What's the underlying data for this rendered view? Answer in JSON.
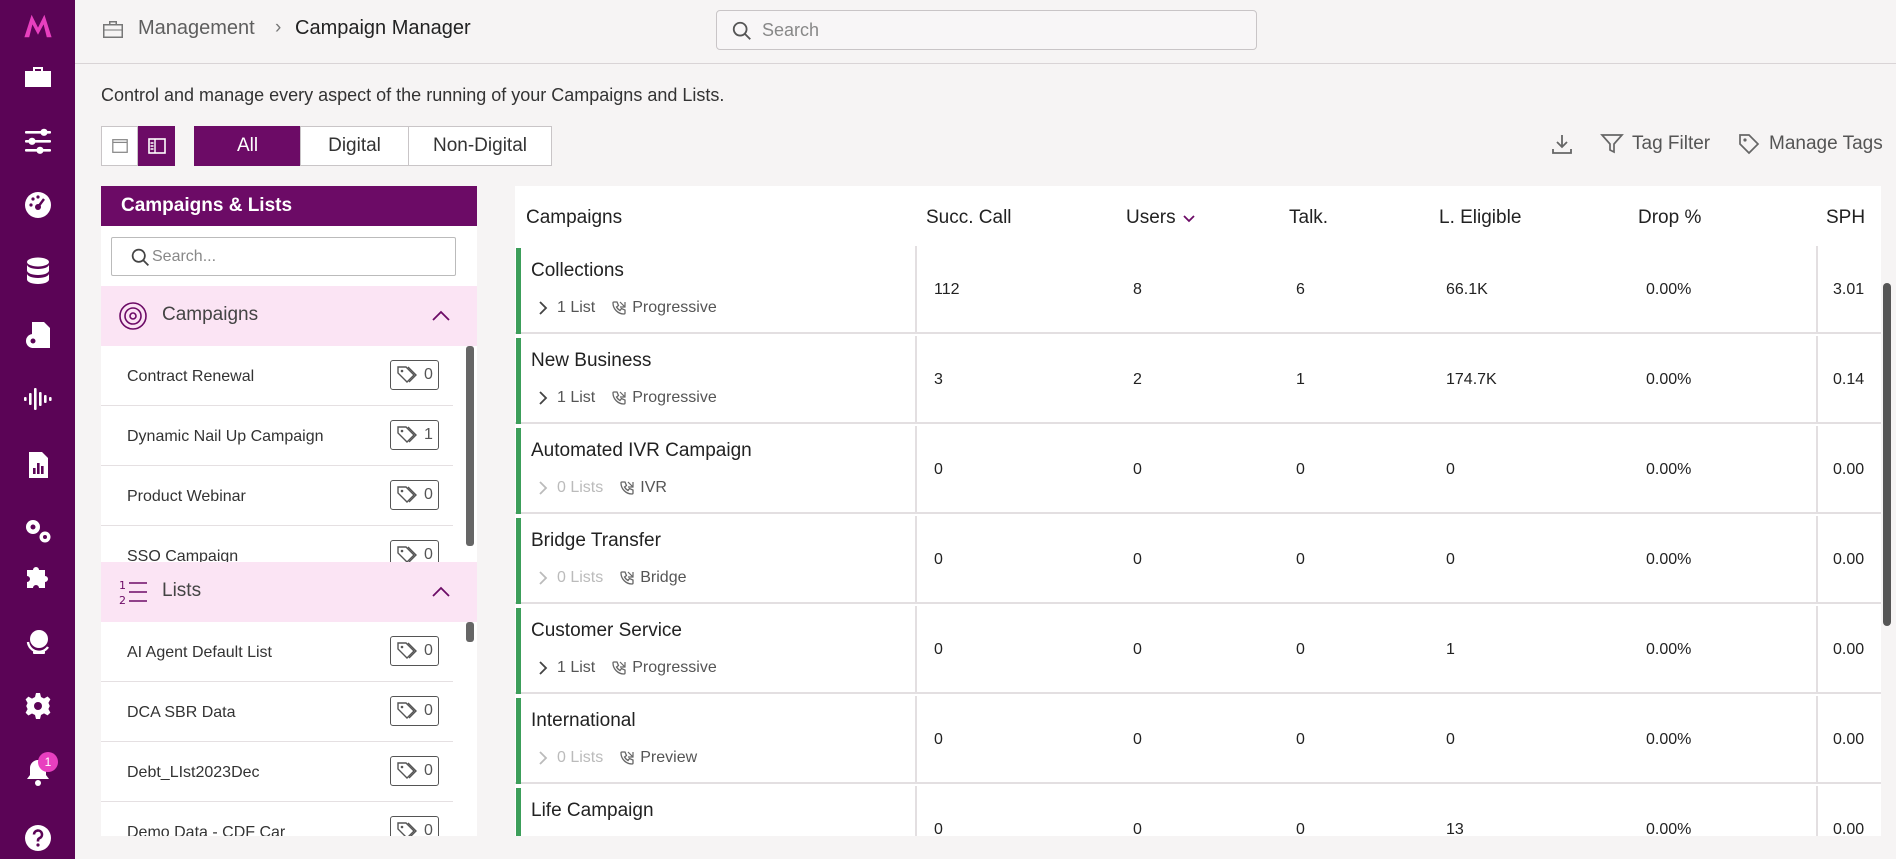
{
  "nav": {
    "logo": "M",
    "notification_count": "1",
    "items": [
      "toolbox-icon",
      "sliders-icon",
      "dashboard-icon",
      "database-icon",
      "document-settings-icon",
      "audio-wave-icon",
      "reports-icon",
      "gears-icon",
      "puzzle-icon",
      "globe-icon",
      "settings-icon",
      "bell-icon",
      "help-icon"
    ]
  },
  "breadcrumb": {
    "parent": "Management",
    "separator": "›",
    "current": "Campaign Manager"
  },
  "search": {
    "placeholder": "Search"
  },
  "description": "Control and manage every aspect of the running of your Campaigns and Lists.",
  "filter_tabs": [
    {
      "label": "All",
      "active": true
    },
    {
      "label": "Digital",
      "active": false
    },
    {
      "label": "Non-Digital",
      "active": false
    }
  ],
  "toolbar": {
    "download": "download-icon",
    "tag_filter": "Tag Filter",
    "manage_tags": "Manage Tags"
  },
  "left_panel": {
    "title": "Campaigns & Lists",
    "search_placeholder": "Search...",
    "campaigns_section": {
      "title": "Campaigns",
      "items": [
        {
          "label": "Contract Renewal",
          "tags": "0"
        },
        {
          "label": "Dynamic Nail Up Campaign",
          "tags": "1"
        },
        {
          "label": "Product Webinar",
          "tags": "0"
        },
        {
          "label": "SSO Campaign",
          "tags": "0"
        }
      ]
    },
    "lists_section": {
      "title": "Lists",
      "items": [
        {
          "label": "AI Agent Default List",
          "tags": "0"
        },
        {
          "label": "DCA SBR Data",
          "tags": "0"
        },
        {
          "label": "Debt_LIst2023Dec",
          "tags": "0"
        },
        {
          "label": "Demo Data - CDF Car",
          "tags": "0"
        }
      ]
    }
  },
  "table": {
    "columns": [
      "Campaigns",
      "Succ. Call",
      "Users",
      "Talk.",
      "L. Eligible",
      "Drop %",
      "SPH"
    ],
    "rows": [
      {
        "name": "Collections",
        "lists": "1 List",
        "type": "Progressive",
        "succ": "112",
        "users": "8",
        "talk": "6",
        "eligible": "66.1K",
        "drop": "0.00%",
        "sph": "3.01",
        "has_lists": true
      },
      {
        "name": "New Business",
        "lists": "1 List",
        "type": "Progressive",
        "succ": "3",
        "users": "2",
        "talk": "1",
        "eligible": "174.7K",
        "drop": "0.00%",
        "sph": "0.14",
        "has_lists": true
      },
      {
        "name": "Automated IVR Campaign",
        "lists": "0 Lists",
        "type": "IVR",
        "succ": "0",
        "users": "0",
        "talk": "0",
        "eligible": "0",
        "drop": "0.00%",
        "sph": "0.00",
        "has_lists": false
      },
      {
        "name": "Bridge Transfer",
        "lists": "0 Lists",
        "type": "Bridge",
        "succ": "0",
        "users": "0",
        "talk": "0",
        "eligible": "0",
        "drop": "0.00%",
        "sph": "0.00",
        "has_lists": false
      },
      {
        "name": "Customer Service",
        "lists": "1 List",
        "type": "Progressive",
        "succ": "0",
        "users": "0",
        "talk": "0",
        "eligible": "1",
        "drop": "0.00%",
        "sph": "0.00",
        "has_lists": true
      },
      {
        "name": "International",
        "lists": "0 Lists",
        "type": "Preview",
        "succ": "0",
        "users": "0",
        "talk": "0",
        "eligible": "0",
        "drop": "0.00%",
        "sph": "0.00",
        "has_lists": false
      },
      {
        "name": "Life Campaign",
        "lists": "",
        "type": "",
        "succ": "0",
        "users": "0",
        "talk": "0",
        "eligible": "13",
        "drop": "0.00%",
        "sph": "0.00",
        "has_lists": true
      }
    ]
  },
  "colors": {
    "brand": "#6c0b66",
    "rail": "#5b0456",
    "row_accent": "#3c9e5a",
    "section_bg": "#fbe4f4",
    "badge": "#e83fbf"
  }
}
